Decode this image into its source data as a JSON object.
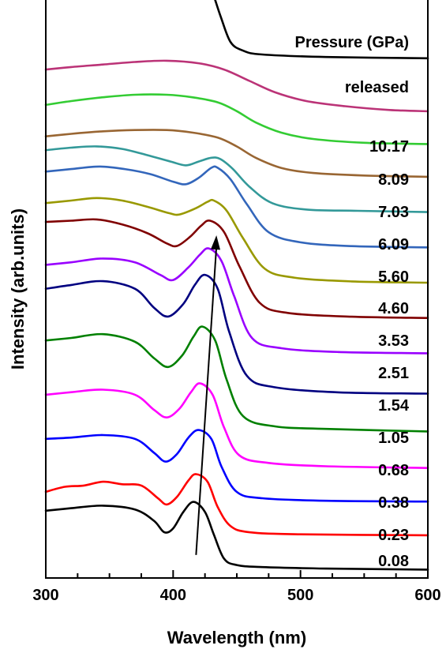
{
  "chart_data": {
    "type": "line",
    "xlabel": "Wavelength (nm)",
    "ylabel": "Intensity (arb.units)",
    "xlim": [
      300,
      600
    ],
    "x_ticks": [
      "300",
      "400",
      "500",
      "600"
    ],
    "y_ticks_shown": false,
    "legend_title": "Pressure (GPa)",
    "grid": false,
    "arrow_annotation": {
      "from": [
        418,
        0.6
      ],
      "to": [
        434,
        13.25
      ]
    },
    "series": [
      {
        "name": "0.08",
        "color": "#000000",
        "offset": 0,
        "points": [
          [
            300,
            2.35
          ],
          [
            320,
            2.45
          ],
          [
            345,
            2.55
          ],
          [
            370,
            2.4
          ],
          [
            385,
            1.95
          ],
          [
            393,
            1.5
          ],
          [
            400,
            1.65
          ],
          [
            408,
            2.3
          ],
          [
            416,
            2.7
          ],
          [
            425,
            2.3
          ],
          [
            432,
            1.4
          ],
          [
            440,
            0.45
          ],
          [
            450,
            0.2
          ],
          [
            470,
            0.12
          ],
          [
            520,
            0.06
          ],
          [
            600,
            0.02
          ]
        ]
      },
      {
        "name": "0.23",
        "color": "#ff0000",
        "offset": 1,
        "points": [
          [
            300,
            1.8
          ],
          [
            315,
            2.0
          ],
          [
            330,
            2.05
          ],
          [
            345,
            2.2
          ],
          [
            360,
            2.1
          ],
          [
            375,
            2.05
          ],
          [
            388,
            1.55
          ],
          [
            395,
            1.3
          ],
          [
            403,
            1.6
          ],
          [
            412,
            2.25
          ],
          [
            418,
            2.5
          ],
          [
            427,
            2.2
          ],
          [
            435,
            1.2
          ],
          [
            445,
            0.45
          ],
          [
            460,
            0.2
          ],
          [
            500,
            0.12
          ],
          [
            600,
            0.08
          ]
        ]
      },
      {
        "name": "0.38",
        "color": "#0000ff",
        "offset": 2,
        "points": [
          [
            300,
            2.6
          ],
          [
            320,
            2.65
          ],
          [
            345,
            2.75
          ],
          [
            370,
            2.6
          ],
          [
            385,
            2.05
          ],
          [
            394,
            1.7
          ],
          [
            403,
            2.0
          ],
          [
            412,
            2.65
          ],
          [
            420,
            2.95
          ],
          [
            430,
            2.6
          ],
          [
            438,
            1.5
          ],
          [
            450,
            0.5
          ],
          [
            470,
            0.25
          ],
          [
            520,
            0.15
          ],
          [
            600,
            0.12
          ]
        ]
      },
      {
        "name": "0.68",
        "color": "#ff00ff",
        "offset": 3,
        "points": [
          [
            300,
            3.05
          ],
          [
            320,
            3.15
          ],
          [
            345,
            3.25
          ],
          [
            370,
            3.05
          ],
          [
            385,
            2.45
          ],
          [
            395,
            2.15
          ],
          [
            405,
            2.5
          ],
          [
            414,
            3.15
          ],
          [
            421,
            3.5
          ],
          [
            431,
            3.05
          ],
          [
            440,
            1.75
          ],
          [
            452,
            0.65
          ],
          [
            475,
            0.35
          ],
          [
            520,
            0.22
          ],
          [
            600,
            0.15
          ]
        ]
      },
      {
        "name": "1.05",
        "color": "#008000",
        "offset": 4,
        "points": [
          [
            300,
            3.9
          ],
          [
            320,
            4.0
          ],
          [
            345,
            4.15
          ],
          [
            370,
            3.85
          ],
          [
            385,
            3.2
          ],
          [
            396,
            2.85
          ],
          [
            407,
            3.3
          ],
          [
            416,
            4.05
          ],
          [
            423,
            4.45
          ],
          [
            433,
            3.9
          ],
          [
            442,
            2.35
          ],
          [
            455,
            0.9
          ],
          [
            480,
            0.5
          ],
          [
            520,
            0.4
          ],
          [
            600,
            0.3
          ]
        ]
      },
      {
        "name": "1.54",
        "color": "#000080",
        "offset": 5,
        "points": [
          [
            300,
            4.65
          ],
          [
            320,
            4.8
          ],
          [
            345,
            4.95
          ],
          [
            370,
            4.65
          ],
          [
            385,
            3.9
          ],
          [
            396,
            3.55
          ],
          [
            408,
            4.05
          ],
          [
            417,
            4.8
          ],
          [
            425,
            5.2
          ],
          [
            435,
            4.65
          ],
          [
            444,
            2.95
          ],
          [
            458,
            1.2
          ],
          [
            480,
            0.75
          ],
          [
            530,
            0.55
          ],
          [
            600,
            0.5
          ]
        ]
      },
      {
        "name": "2.51",
        "color": "#9900ff",
        "offset": 6,
        "points": [
          [
            300,
            4.3
          ],
          [
            320,
            4.4
          ],
          [
            345,
            4.55
          ],
          [
            370,
            4.4
          ],
          [
            390,
            3.9
          ],
          [
            400,
            3.7
          ],
          [
            412,
            4.2
          ],
          [
            421,
            4.7
          ],
          [
            428,
            4.95
          ],
          [
            438,
            4.45
          ],
          [
            448,
            3.05
          ],
          [
            462,
            1.4
          ],
          [
            485,
            1.0
          ],
          [
            530,
            0.85
          ],
          [
            600,
            0.8
          ]
        ]
      },
      {
        "name": "3.53",
        "color": "#800000",
        "offset": 7,
        "points": [
          [
            300,
            4.7
          ],
          [
            320,
            4.75
          ],
          [
            340,
            4.8
          ],
          [
            360,
            4.6
          ],
          [
            380,
            4.25
          ],
          [
            395,
            3.85
          ],
          [
            403,
            3.75
          ],
          [
            413,
            4.1
          ],
          [
            422,
            4.55
          ],
          [
            429,
            4.75
          ],
          [
            440,
            4.3
          ],
          [
            452,
            2.95
          ],
          [
            468,
            1.5
          ],
          [
            490,
            1.1
          ],
          [
            540,
            0.95
          ],
          [
            600,
            0.9
          ]
        ]
      },
      {
        "name": "4.60",
        "color": "#999900",
        "offset": 8,
        "points": [
          [
            300,
            4.15
          ],
          [
            320,
            4.25
          ],
          [
            340,
            4.35
          ],
          [
            360,
            4.25
          ],
          [
            380,
            4.0
          ],
          [
            397,
            3.75
          ],
          [
            405,
            3.7
          ],
          [
            418,
            3.95
          ],
          [
            427,
            4.2
          ],
          [
            432,
            4.25
          ],
          [
            442,
            3.85
          ],
          [
            455,
            2.75
          ],
          [
            472,
            1.55
          ],
          [
            495,
            1.2
          ],
          [
            540,
            1.05
          ],
          [
            600,
            1.0
          ]
        ]
      },
      {
        "name": "5.60",
        "color": "#3366bb",
        "offset": 9,
        "points": [
          [
            300,
            4.1
          ],
          [
            320,
            4.2
          ],
          [
            342,
            4.3
          ],
          [
            362,
            4.2
          ],
          [
            382,
            4.0
          ],
          [
            400,
            3.7
          ],
          [
            410,
            3.6
          ],
          [
            420,
            3.85
          ],
          [
            430,
            4.25
          ],
          [
            435,
            4.25
          ],
          [
            445,
            3.8
          ],
          [
            458,
            2.8
          ],
          [
            475,
            1.7
          ],
          [
            500,
            1.3
          ],
          [
            540,
            1.15
          ],
          [
            600,
            1.1
          ]
        ]
      },
      {
        "name": "6.09",
        "color": "#339999",
        "offset": 10,
        "points": [
          [
            300,
            3.65
          ],
          [
            320,
            3.75
          ],
          [
            340,
            3.8
          ],
          [
            360,
            3.7
          ],
          [
            380,
            3.45
          ],
          [
            398,
            3.2
          ],
          [
            410,
            3.05
          ],
          [
            420,
            3.2
          ],
          [
            430,
            3.35
          ],
          [
            437,
            3.3
          ],
          [
            447,
            2.9
          ],
          [
            460,
            2.2
          ],
          [
            478,
            1.55
          ],
          [
            505,
            1.3
          ],
          [
            545,
            1.25
          ],
          [
            600,
            1.2
          ]
        ]
      },
      {
        "name": "7.03",
        "color": "#996633",
        "offset": 11,
        "points": [
          [
            300,
            2.9
          ],
          [
            320,
            3.0
          ],
          [
            345,
            3.1
          ],
          [
            370,
            3.15
          ],
          [
            395,
            3.15
          ],
          [
            415,
            3.05
          ],
          [
            435,
            2.85
          ],
          [
            450,
            2.5
          ],
          [
            465,
            2.05
          ],
          [
            485,
            1.65
          ],
          [
            510,
            1.45
          ],
          [
            550,
            1.35
          ],
          [
            600,
            1.3
          ]
        ]
      },
      {
        "name": "8.09",
        "color": "#33cc33",
        "offset": 12,
        "points": [
          [
            300,
            2.85
          ],
          [
            320,
            3.0
          ],
          [
            345,
            3.15
          ],
          [
            370,
            3.25
          ],
          [
            395,
            3.25
          ],
          [
            415,
            3.15
          ],
          [
            435,
            2.95
          ],
          [
            450,
            2.6
          ],
          [
            465,
            2.15
          ],
          [
            485,
            1.75
          ],
          [
            510,
            1.5
          ],
          [
            550,
            1.35
          ],
          [
            600,
            1.3
          ]
        ]
      },
      {
        "name": "10.17",
        "color": "#bb3377",
        "offset": 13,
        "points": [
          [
            300,
            2.95
          ],
          [
            320,
            3.05
          ],
          [
            345,
            3.15
          ],
          [
            370,
            3.25
          ],
          [
            395,
            3.3
          ],
          [
            420,
            3.2
          ],
          [
            440,
            2.95
          ],
          [
            460,
            2.5
          ],
          [
            480,
            2.05
          ],
          [
            505,
            1.7
          ],
          [
            535,
            1.5
          ],
          [
            570,
            1.35
          ],
          [
            600,
            1.3
          ]
        ]
      },
      {
        "name": "released",
        "color": "#000000",
        "offset": 14,
        "points": [
          [
            300,
            5.2
          ],
          [
            315,
            5.3
          ],
          [
            330,
            5.4
          ],
          [
            350,
            5.4
          ],
          [
            370,
            5.3
          ],
          [
            385,
            4.95
          ],
          [
            393,
            4.75
          ],
          [
            400,
            4.9
          ],
          [
            407,
            5.45
          ],
          [
            413,
            5.7
          ],
          [
            420,
            5.6
          ],
          [
            428,
            5.1
          ],
          [
            437,
            3.8
          ],
          [
            445,
            2.75
          ],
          [
            455,
            2.4
          ],
          [
            470,
            2.25
          ],
          [
            520,
            2.15
          ],
          [
            600,
            2.1
          ]
        ]
      }
    ],
    "series_labels": [
      "Pressure (GPa)",
      "released",
      "10.17",
      "8.09",
      "7.03",
      "6.09",
      "5.60",
      "4.60",
      "3.53",
      "2.51",
      "1.54",
      "1.05",
      "0.68",
      "0.38",
      "0.23",
      "0.08"
    ]
  }
}
